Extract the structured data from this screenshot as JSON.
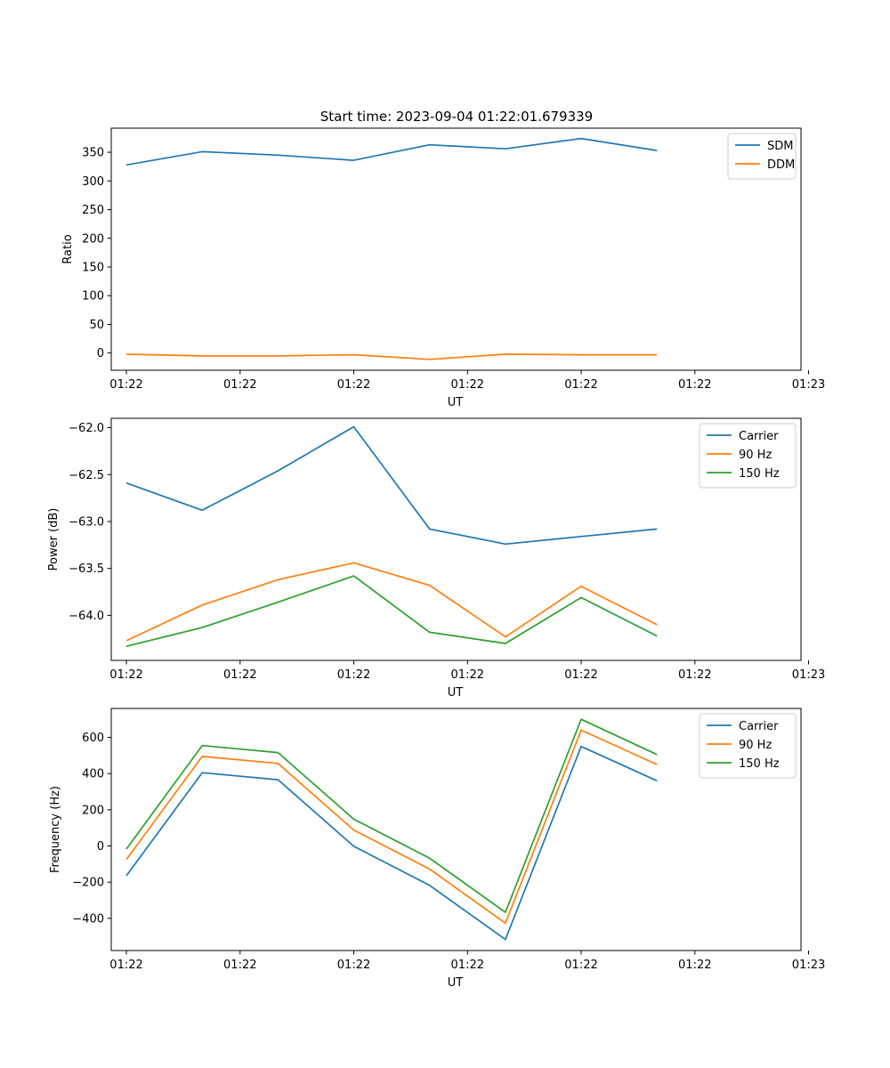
{
  "figure_title": "Start time: 2023-09-04 01:22:01.679339",
  "chart_data": [
    {
      "type": "line",
      "title": "Start time: 2023-09-04 01:22:01.679339",
      "xlabel": "UT",
      "ylabel": "Ratio",
      "x": [
        1,
        2,
        3,
        4,
        5,
        6,
        7,
        8
      ],
      "xlim": [
        0.8,
        9.9
      ],
      "x_ticks": [
        1,
        2.5,
        4,
        5.5,
        7,
        8.5,
        10
      ],
      "x_tick_labels": [
        "01:22",
        "01:22",
        "01:22",
        "01:22",
        "01:22",
        "01:22",
        "01:23"
      ],
      "ylim": [
        -30,
        392
      ],
      "y_ticks": [
        0,
        50,
        100,
        150,
        200,
        250,
        300,
        350
      ],
      "y_tick_labels": [
        "0",
        "50",
        "100",
        "150",
        "200",
        "250",
        "300",
        "350"
      ],
      "legend_position": "top-right",
      "series": [
        {
          "name": "SDM",
          "color": "#1f77b4",
          "values": [
            328,
            351,
            345,
            336,
            363,
            356,
            374,
            353
          ]
        },
        {
          "name": "DDM",
          "color": "#ff7f0e",
          "values": [
            -2,
            -5,
            -5,
            -3,
            -11,
            -2,
            -3,
            -3
          ]
        }
      ]
    },
    {
      "type": "line",
      "title": "",
      "xlabel": "UT",
      "ylabel": "Power (dB)",
      "x": [
        1,
        2,
        3,
        4,
        5,
        6,
        7,
        8
      ],
      "xlim": [
        0.8,
        9.9
      ],
      "x_ticks": [
        1,
        2.5,
        4,
        5.5,
        7,
        8.5,
        10
      ],
      "x_tick_labels": [
        "01:22",
        "01:22",
        "01:22",
        "01:22",
        "01:22",
        "01:22",
        "01:23"
      ],
      "ylim": [
        -64.48,
        -61.9
      ],
      "y_ticks": [
        -64.0,
        -63.5,
        -63.0,
        -62.5,
        -62.0
      ],
      "y_tick_labels": [
        "−64.0",
        "−63.5",
        "−63.0",
        "−62.5",
        "−62.0"
      ],
      "legend_position": "top-right",
      "series": [
        {
          "name": "Carrier",
          "color": "#1f77b4",
          "values": [
            -62.59,
            -62.88,
            -62.46,
            -61.99,
            -63.08,
            -63.24,
            -63.16,
            -63.08
          ]
        },
        {
          "name": "90 Hz",
          "color": "#ff7f0e",
          "values": [
            -64.27,
            -63.89,
            -63.62,
            -63.44,
            -63.68,
            -64.23,
            -63.69,
            -64.1
          ]
        },
        {
          "name": "150 Hz",
          "color": "#2ca02c",
          "values": [
            -64.33,
            -64.13,
            -63.86,
            -63.58,
            -64.18,
            -64.3,
            -63.81,
            -64.22
          ]
        }
      ]
    },
    {
      "type": "line",
      "title": "",
      "xlabel": "UT",
      "ylabel": "Frequency (Hz)",
      "x": [
        1,
        2,
        3,
        4,
        5,
        6,
        7,
        8
      ],
      "xlim": [
        0.8,
        9.9
      ],
      "x_ticks": [
        1,
        2.5,
        4,
        5.5,
        7,
        8.5,
        10
      ],
      "x_tick_labels": [
        "01:22",
        "01:22",
        "01:22",
        "01:22",
        "01:22",
        "01:22",
        "01:23"
      ],
      "ylim": [
        -578,
        760
      ],
      "y_ticks": [
        -400,
        -200,
        0,
        200,
        400,
        600
      ],
      "y_tick_labels": [
        "−400",
        "−200",
        "0",
        "200",
        "400",
        "600"
      ],
      "legend_position": "top-right",
      "series": [
        {
          "name": "Carrier",
          "color": "#1f77b4",
          "values": [
            -165,
            405,
            366,
            -2,
            -218,
            -517,
            550,
            360
          ]
        },
        {
          "name": "90 Hz",
          "color": "#ff7f0e",
          "values": [
            -75,
            495,
            456,
            88,
            -128,
            -427,
            640,
            450
          ]
        },
        {
          "name": "150 Hz",
          "color": "#2ca02c",
          "values": [
            -17,
            555,
            516,
            148,
            -68,
            -367,
            700,
            505
          ]
        }
      ]
    }
  ]
}
